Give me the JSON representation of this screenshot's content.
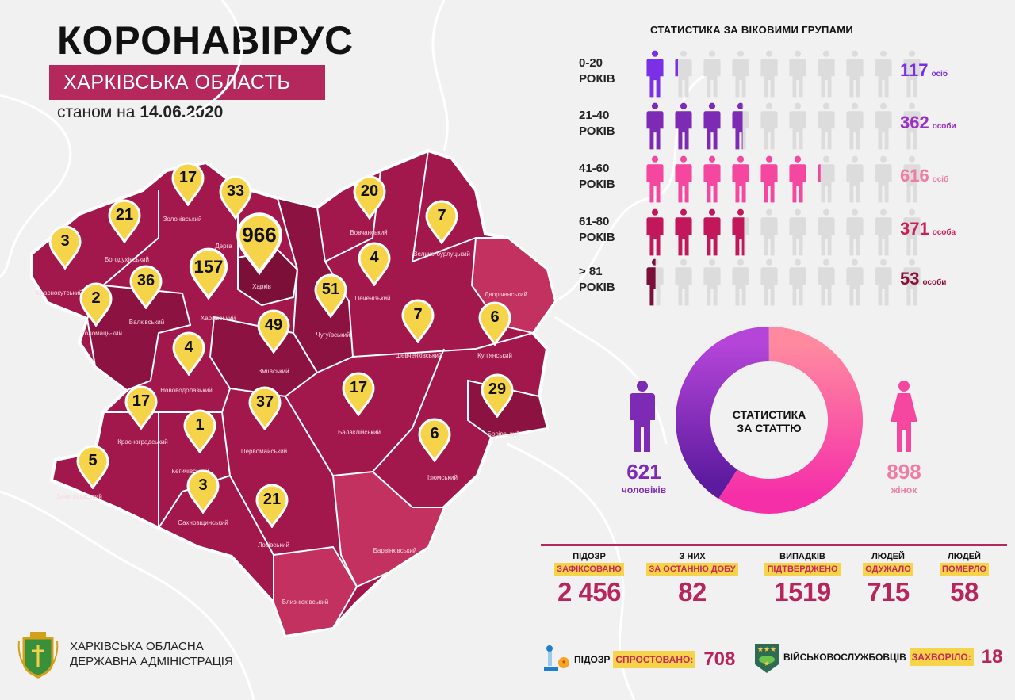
{
  "header": {
    "title": "КОРОНАВІРУС",
    "region": "ХАРКІВСЬКА ОБЛАСТЬ",
    "date_prefix": "станом на",
    "date": "14.06.2020"
  },
  "colors": {
    "brand": "#b5285e",
    "pin": "#f6d44a",
    "map_dark": "#8c1241",
    "map_mid": "#a3184c",
    "map_light": "#c2315f",
    "men": "#7d2bb5",
    "women": "#f5479f"
  },
  "districts": [
    {
      "name": "Краснокутський",
      "count": 3
    },
    {
      "name": "Богодухівський",
      "count": 21
    },
    {
      "name": "Золочівський",
      "count": 17
    },
    {
      "name": "Дерга",
      "count": 33
    },
    {
      "name": "Харків",
      "count": 966
    },
    {
      "name": "Харківський",
      "count": 157
    },
    {
      "name": "Валківський",
      "count": 36
    },
    {
      "name": "Коломаць-кий",
      "count": 2
    },
    {
      "name": "Нововодолазький",
      "count": 4
    },
    {
      "name": "Зміївський",
      "count": 49
    },
    {
      "name": "Чугуївський",
      "count": 51
    },
    {
      "name": "Печенізький",
      "count": 4
    },
    {
      "name": "Вовчанський",
      "count": 20
    },
    {
      "name": "Велико-бурлуцький",
      "count": 7
    },
    {
      "name": "Дворічанський",
      "count": null
    },
    {
      "name": "Шевченківський",
      "count": 7
    },
    {
      "name": "Куп'янський",
      "count": 6
    },
    {
      "name": "Балаклійський",
      "count": 17
    },
    {
      "name": "Борівський",
      "count": 29
    },
    {
      "name": "Ізюмський",
      "count": 6
    },
    {
      "name": "Первомайський",
      "count": 37
    },
    {
      "name": "Красноградський",
      "count": 17
    },
    {
      "name": "Кегичівський",
      "count": 1
    },
    {
      "name": "Зачепилівський",
      "count": 5
    },
    {
      "name": "Сахновщинський",
      "count": 3
    },
    {
      "name": "Лозівський",
      "count": 21
    },
    {
      "name": "Барвінківський",
      "count": null
    },
    {
      "name": "Близнюківський",
      "count": null
    }
  ],
  "age_stats": {
    "title": "СТАТИСТИКА ЗА ВІКОВИМИ ГРУПАМИ",
    "people_per_icon": 100,
    "icons_total": 10,
    "groups": [
      {
        "range": "0-20",
        "unit_label": "РОКІВ",
        "value": 117,
        "suffix": "осіб",
        "color": "#7b2fe6",
        "text_color": "#7b2fe0"
      },
      {
        "range": "21-40",
        "unit_label": "РОКІВ",
        "value": 362,
        "suffix": "особи",
        "color": "#7d2bb5",
        "text_color": "#9b2fc0"
      },
      {
        "range": "41-60",
        "unit_label": "РОКІВ",
        "value": 616,
        "suffix": "осіб",
        "color": "#f5479f",
        "text_color": "#f07ba3"
      },
      {
        "range": "61-80",
        "unit_label": "РОКІВ",
        "value": 371,
        "suffix": "особа",
        "color": "#c2185b",
        "text_color": "#c81e5a"
      },
      {
        "range": "> 81",
        "unit_label": "РОКІВ",
        "value": 53,
        "suffix": "особи",
        "color": "#7a1038",
        "text_color": "#8a1038"
      }
    ]
  },
  "gender_stats": {
    "title_line1": "СТАТИСТИКА",
    "title_line2": "ЗА СТАТТЮ",
    "men": {
      "value": 621,
      "label": "чоловіків"
    },
    "women": {
      "value": 898,
      "label": "жінок"
    }
  },
  "summary": [
    {
      "top": "ПІДОЗР",
      "highlight": "ЗАФІКСОВАНО",
      "value": "2 456"
    },
    {
      "top": "З НИХ",
      "highlight": "ЗА ОСТАННЮ ДОБУ",
      "value": "82"
    },
    {
      "top": "ВИПАДКІВ",
      "highlight": "ПІДТВЕРДЖЕНО",
      "value": "1519"
    },
    {
      "top": "ЛЮДЕЙ",
      "highlight": "ОДУЖАЛО",
      "value": "715"
    },
    {
      "top": "ЛЮДЕЙ",
      "highlight": "ПОМЕРЛО",
      "value": "58"
    }
  ],
  "extra": {
    "refuted": {
      "label": "ПІДОЗР",
      "highlight": "СПРОСТОВАНО:",
      "value": "708",
      "icon": "microscope-icon"
    },
    "military": {
      "label": "ВІЙСЬКОВОСЛУЖБОВЦІВ",
      "highlight": "ЗАХВОРІЛО:",
      "value": "18",
      "icon": "military-badge-icon"
    }
  },
  "footer": {
    "org_line1": "ХАРКІВСЬКА ОБЛАСНА",
    "org_line2": "ДЕРЖАВНА АДМІНІСТРАЦІЯ"
  }
}
